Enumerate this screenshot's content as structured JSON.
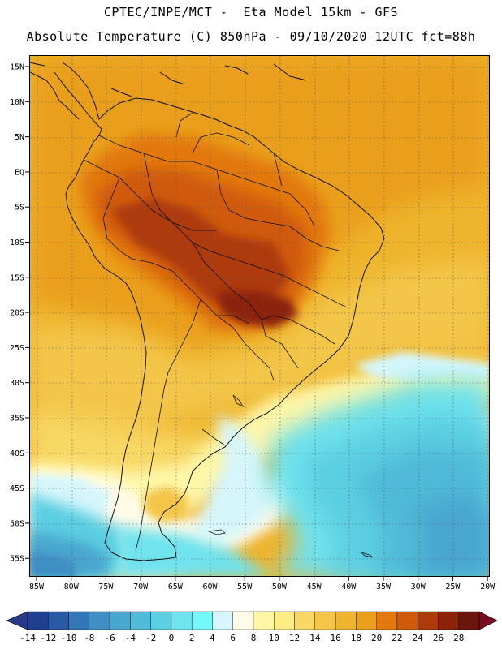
{
  "header": {
    "line1": "CPTEC/INPE/MCT -  Eta Model 15km - GFS",
    "line2": "Absolute Temperature (C) 850hPa - 09/10/2020 12UTC fct=88h"
  },
  "map": {
    "lat_labels": [
      "15N",
      "10N",
      "5N",
      "EQ",
      "5S",
      "10S",
      "15S",
      "20S",
      "25S",
      "30S",
      "35S",
      "40S",
      "45S",
      "50S",
      "55S"
    ],
    "lon_labels": [
      "85W",
      "80W",
      "75W",
      "70W",
      "65W",
      "60W",
      "55W",
      "50W",
      "45W",
      "40W",
      "35W",
      "30W",
      "25W",
      "20W"
    ]
  },
  "colorbar": {
    "labels": [
      "-14",
      "-12",
      "-10",
      "-8",
      "-6",
      "-4",
      "-2",
      "0",
      "2",
      "4",
      "6",
      "8",
      "10",
      "12",
      "14",
      "16",
      "18",
      "20",
      "22",
      "24",
      "26",
      "28"
    ],
    "colors": [
      "#1f3f8f",
      "#2a5aa6",
      "#3477b8",
      "#3f8fc4",
      "#48a6cf",
      "#50bad8",
      "#5ccfe2",
      "#6fe3ee",
      "#74f7f7",
      "#d6f6fb",
      "#fffbe8",
      "#fff6a6",
      "#fdeb83",
      "#f8d865",
      "#f3c64a",
      "#eeb42d",
      "#ea9f1c",
      "#e2780e",
      "#cf5a0a",
      "#ad3a0a",
      "#8c230a",
      "#6b160c"
    ],
    "low_color": "#2a3a8a",
    "high_color": "#7a0a23"
  }
}
